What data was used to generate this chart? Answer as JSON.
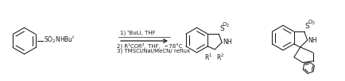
{
  "background_color": "#ffffff",
  "figsize": [
    4.34,
    1.03
  ],
  "dpi": 100,
  "line1": "1) ᵗBuLi, THF",
  "line2": "2) R¹COR², THF,  −78°C",
  "line3": "3) TMSCl/NaI/MeCN/ reflux",
  "line_color": "#1a1a1a",
  "lw": 0.75
}
